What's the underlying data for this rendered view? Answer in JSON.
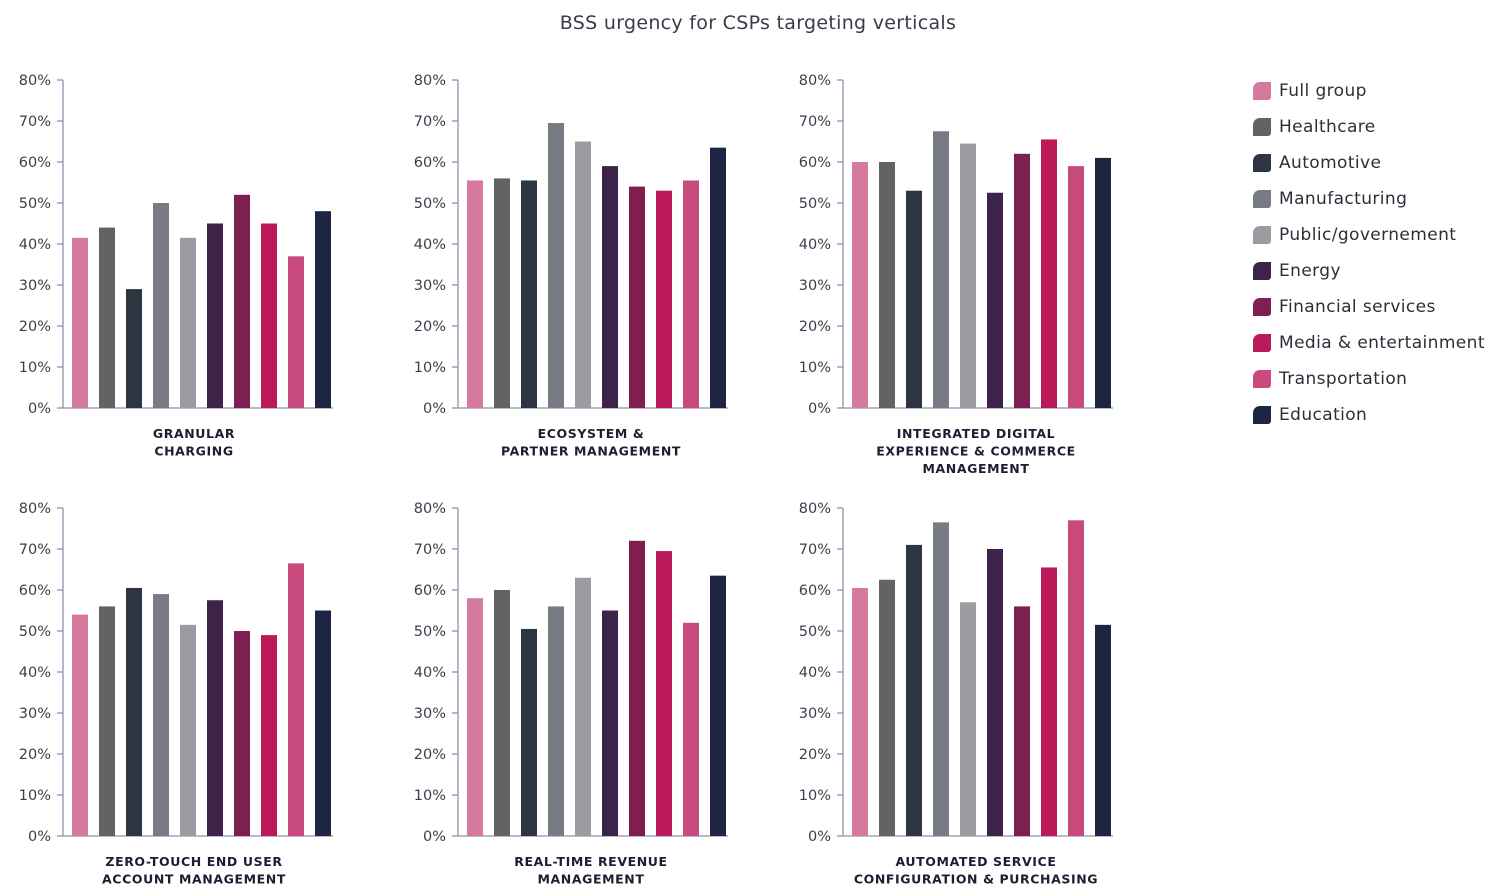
{
  "title": "BSS urgency for CSPs targeting verticals",
  "legend": [
    {
      "name": "Full group",
      "color": "#d6799f"
    },
    {
      "name": "Healthcare",
      "color": "#636366"
    },
    {
      "name": "Automotive",
      "color": "#2d3542"
    },
    {
      "name": "Manufacturing",
      "color": "#787b83"
    },
    {
      "name": "Public/governement",
      "color": "#9a9ca1"
    },
    {
      "name": "Energy",
      "color": "#3d2249"
    },
    {
      "name": "Financial services",
      "color": "#7f1f51"
    },
    {
      "name": "Media & entertainment",
      "color": "#bb1a59"
    },
    {
      "name": "Transportation",
      "color": "#c94b7e"
    },
    {
      "name": "Education",
      "color": "#1e2543"
    }
  ],
  "chart_data": [
    {
      "type": "bar",
      "title_lines": [
        "GRANULAR",
        "CHARGING"
      ],
      "ylim": [
        0,
        80
      ],
      "yticks": [
        "0%",
        "10%",
        "20%",
        "30%",
        "40%",
        "50%",
        "60%",
        "70%",
        "80%"
      ],
      "values": [
        41.5,
        44,
        29,
        50,
        41.5,
        45,
        52,
        45,
        37,
        48
      ]
    },
    {
      "type": "bar",
      "title_lines": [
        "ECOSYSTEM &",
        "PARTNER MANAGEMENT"
      ],
      "ylim": [
        0,
        80
      ],
      "yticks": [
        "0%",
        "10%",
        "20%",
        "30%",
        "40%",
        "50%",
        "60%",
        "70%",
        "80%"
      ],
      "values": [
        55.5,
        56,
        55.5,
        69.5,
        65,
        59,
        54,
        53,
        55.5,
        63.5
      ]
    },
    {
      "type": "bar",
      "title_lines": [
        "INTEGRATED DIGITAL",
        "EXPERIENCE & COMMERCE",
        "MANAGEMENT"
      ],
      "ylim": [
        0,
        80
      ],
      "yticks": [
        "0%",
        "10%",
        "20%",
        "30%",
        "40%",
        "50%",
        "60%",
        "70%",
        "80%"
      ],
      "values": [
        60,
        60,
        53,
        67.5,
        64.5,
        52.5,
        62,
        65.5,
        59,
        61
      ]
    },
    {
      "type": "bar",
      "title_lines": [
        "ZERO-TOUCH END USER",
        "ACCOUNT MANAGEMENT"
      ],
      "ylim": [
        0,
        80
      ],
      "yticks": [
        "0%",
        "10%",
        "20%",
        "30%",
        "40%",
        "50%",
        "60%",
        "70%",
        "80%"
      ],
      "values": [
        54,
        56,
        60.5,
        59,
        51.5,
        57.5,
        50,
        49,
        66.5,
        55
      ]
    },
    {
      "type": "bar",
      "title_lines": [
        "REAL-TIME REVENUE",
        "MANAGEMENT"
      ],
      "ylim": [
        0,
        80
      ],
      "yticks": [
        "0%",
        "10%",
        "20%",
        "30%",
        "40%",
        "50%",
        "60%",
        "70%",
        "80%"
      ],
      "values": [
        58,
        60,
        50.5,
        56,
        63,
        55,
        72,
        69.5,
        52,
        63.5
      ]
    },
    {
      "type": "bar",
      "title_lines": [
        "AUTOMATED SERVICE",
        "CONFIGURATION & PURCHASING"
      ],
      "ylim": [
        0,
        80
      ],
      "yticks": [
        "0%",
        "10%",
        "20%",
        "30%",
        "40%",
        "50%",
        "60%",
        "70%",
        "80%"
      ],
      "values": [
        60.5,
        62.5,
        71,
        76.5,
        57,
        70,
        56,
        65.5,
        77,
        51.5
      ]
    }
  ]
}
